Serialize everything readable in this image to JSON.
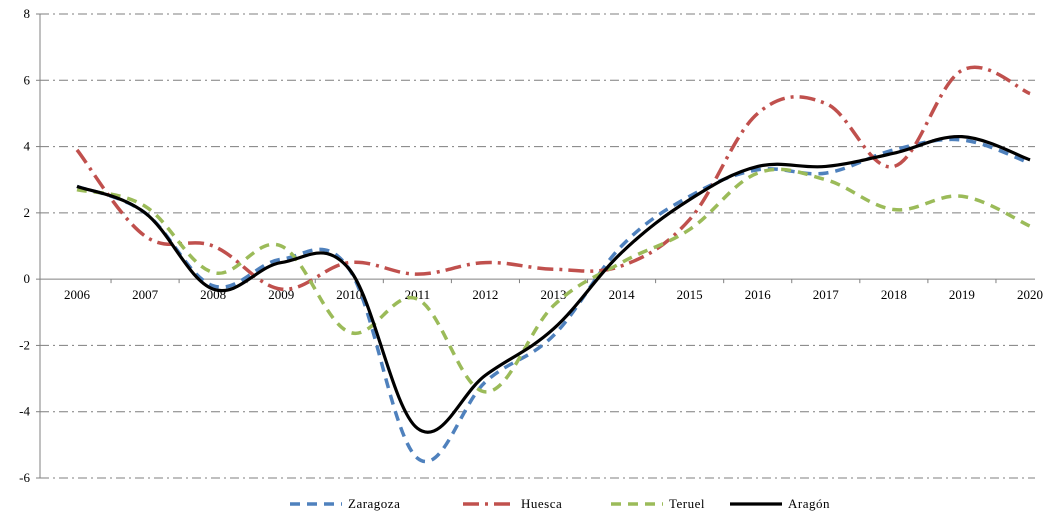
{
  "chart_data": {
    "type": "line",
    "title": "",
    "xlabel": "",
    "ylabel": "",
    "categories": [
      "2006",
      "2007",
      "2008",
      "2009",
      "2010",
      "2011",
      "2012",
      "2013",
      "2014",
      "2015",
      "2016",
      "2017",
      "2018",
      "2019",
      "2020"
    ],
    "ylim": [
      -6,
      8
    ],
    "yticks": [
      "8",
      "6",
      "4",
      "2",
      "0",
      "-2",
      "-4",
      "-6"
    ],
    "grid": "horizontal dash-dot",
    "legend_position": "bottom",
    "series": [
      {
        "name": "Zaragoza",
        "color": "#4F81BD",
        "dash": "dashed",
        "values": [
          2.8,
          2.0,
          -0.2,
          0.6,
          0.3,
          -5.4,
          -3.1,
          -1.7,
          1.0,
          2.5,
          3.3,
          3.2,
          3.9,
          4.2,
          3.5
        ]
      },
      {
        "name": "Huesca",
        "color": "#C0504D",
        "dash": "dash-dot",
        "values": [
          3.9,
          1.3,
          1.0,
          -0.3,
          0.5,
          0.15,
          0.5,
          0.3,
          0.4,
          1.8,
          5.0,
          5.3,
          3.4,
          6.3,
          5.6
        ]
      },
      {
        "name": "Teruel",
        "color": "#9BBB59",
        "dash": "dashed",
        "values": [
          2.7,
          2.2,
          0.2,
          1.0,
          -1.6,
          -0.6,
          -3.4,
          -0.8,
          0.5,
          1.5,
          3.2,
          3.0,
          2.1,
          2.5,
          1.6
        ]
      },
      {
        "name": "Aragón",
        "color": "#000000",
        "dash": "solid",
        "values": [
          2.8,
          2.0,
          -0.3,
          0.5,
          0.3,
          -4.5,
          -2.9,
          -1.5,
          0.8,
          2.4,
          3.4,
          3.4,
          3.8,
          4.3,
          3.6
        ]
      }
    ]
  }
}
